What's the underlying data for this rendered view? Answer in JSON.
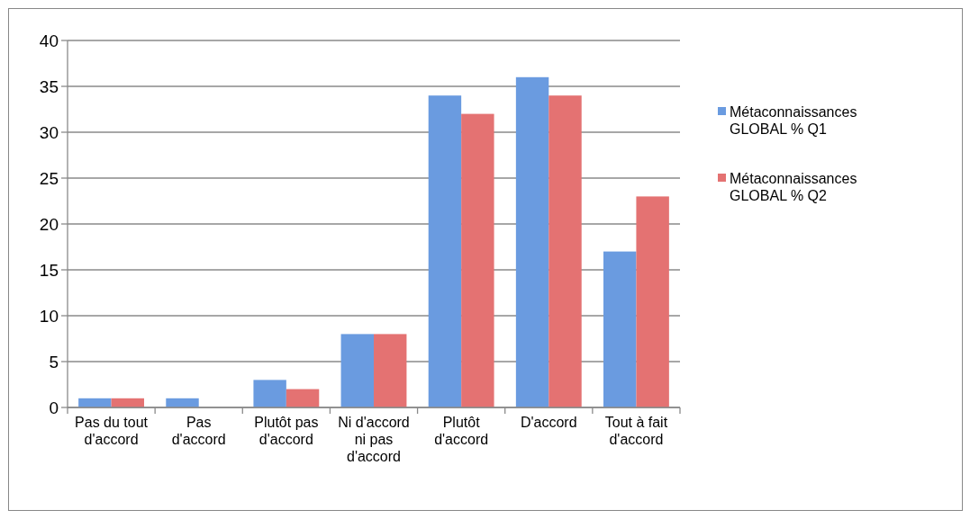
{
  "chart_data": {
    "type": "bar",
    "categories": [
      "Pas du tout d'accord",
      "Pas d'accord",
      "Plutôt pas d'accord",
      "Ni d'accord ni pas d'accord",
      "Plutôt d'accord",
      "D'accord",
      "Tout à fait d'accord"
    ],
    "series": [
      {
        "name": "Métaconnaissances GLOBAL % Q1",
        "color": "#6a9be0",
        "values": [
          1,
          1,
          3,
          8,
          34,
          36,
          17
        ]
      },
      {
        "name": "Métaconnaissances GLOBAL % Q2",
        "color": "#e47272",
        "values": [
          1,
          0,
          2,
          8,
          32,
          34,
          23
        ]
      }
    ],
    "ylim": [
      0,
      40
    ],
    "yticks": [
      0,
      5,
      10,
      15,
      20,
      25,
      30,
      35,
      40
    ],
    "grid": "y",
    "legend": "right"
  }
}
